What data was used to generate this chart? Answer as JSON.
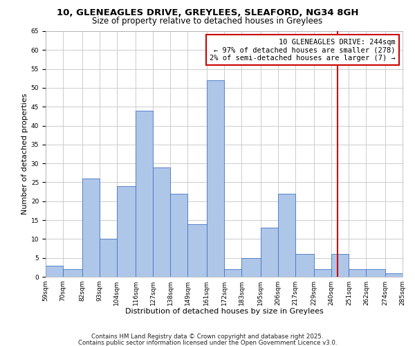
{
  "title": "10, GLENEAGLES DRIVE, GREYLEES, SLEAFORD, NG34 8GH",
  "subtitle": "Size of property relative to detached houses in Greylees",
  "xlabel": "Distribution of detached houses by size in Greylees",
  "ylabel": "Number of detached properties",
  "bar_edges": [
    59,
    70,
    82,
    93,
    104,
    116,
    127,
    138,
    149,
    161,
    172,
    183,
    195,
    206,
    217,
    229,
    240,
    251,
    262,
    274,
    285
  ],
  "bar_heights": [
    3,
    2,
    26,
    10,
    24,
    44,
    29,
    22,
    14,
    52,
    2,
    5,
    13,
    22,
    6,
    2,
    6,
    2,
    2,
    1
  ],
  "bar_color": "#aec6e8",
  "bar_edgecolor": "#4472c4",
  "vline_x": 244,
  "vline_color": "#cc0000",
  "annotation_line1": "10 GLENEAGLES DRIVE: 244sqm",
  "annotation_line2": "← 97% of detached houses are smaller (278)",
  "annotation_line3": "2% of semi-detached houses are larger (7) →",
  "annotation_box_edgecolor": "#cc0000",
  "ylim": [
    0,
    65
  ],
  "yticks": [
    0,
    5,
    10,
    15,
    20,
    25,
    30,
    35,
    40,
    45,
    50,
    55,
    60,
    65
  ],
  "tick_labels": [
    "59sqm",
    "70sqm",
    "82sqm",
    "93sqm",
    "104sqm",
    "116sqm",
    "127sqm",
    "138sqm",
    "149sqm",
    "161sqm",
    "172sqm",
    "183sqm",
    "195sqm",
    "206sqm",
    "217sqm",
    "229sqm",
    "240sqm",
    "251sqm",
    "262sqm",
    "274sqm",
    "285sqm"
  ],
  "footnote1": "Contains HM Land Registry data © Crown copyright and database right 2025.",
  "footnote2": "Contains public sector information licensed under the Open Government Licence v3.0.",
  "background_color": "#ffffff",
  "grid_color": "#cccccc",
  "title_fontsize": 9.5,
  "subtitle_fontsize": 8.5,
  "axis_label_fontsize": 8,
  "tick_fontsize": 6.5,
  "annotation_fontsize": 7.5,
  "footnote_fontsize": 6.2
}
